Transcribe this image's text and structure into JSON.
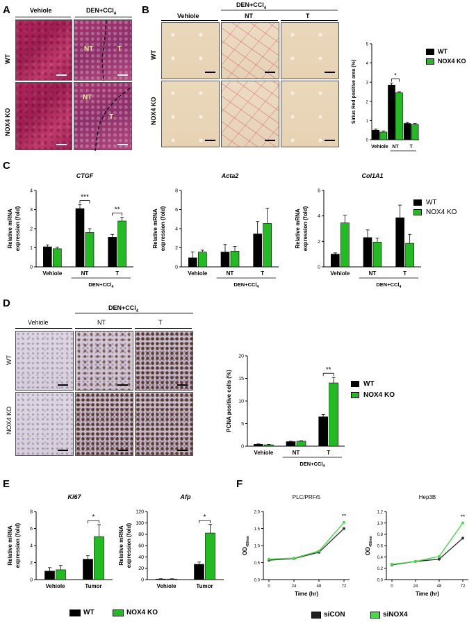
{
  "panels": {
    "A": {
      "letter": "A",
      "col_vehicle": "Vehiole",
      "col_den": "DEN+CCl",
      "col_den_sub": "4",
      "row_wt": "WT",
      "row_ko": "NOX4 KO",
      "tile_nt": "NT",
      "tile_t": "T"
    },
    "B": {
      "letter": "B",
      "col_vehicle": "Vehiole",
      "col_den": "DEN+CCl",
      "col_den_sub": "4",
      "col_nt": "NT",
      "col_t": "T",
      "row_wt": "WT",
      "row_ko": "NOX4 KO"
    },
    "C": {
      "letter": "C"
    },
    "D": {
      "letter": "D",
      "col_vehicle": "Vehiole",
      "col_den": "DEN+CCl",
      "col_den_sub": "4",
      "col_nt": "NT",
      "col_t": "T",
      "row_wt": "WT",
      "row_ko": "NOX4 KO"
    },
    "E": {
      "letter": "E"
    },
    "F": {
      "letter": "F"
    }
  },
  "legend_wt_ko": {
    "wt": "WT",
    "ko": "NOX4 KO"
  },
  "legend_f": {
    "con": "siCON",
    "nox4": "siNOX4"
  },
  "colors": {
    "wt": "#000000",
    "ko": "#22bb22",
    "f_con": "#333333",
    "f_nox4": "#44dd44"
  },
  "chart_data": [
    {
      "id": "B-sirius",
      "type": "bar",
      "ylabel": "Sirius Red positive area (%)",
      "ylim": [
        0,
        5
      ],
      "yticks": [
        0,
        1,
        2,
        3,
        4,
        5
      ],
      "categories": [
        "Vehiole",
        "NT",
        "T"
      ],
      "group_label": "DEN+CCl4",
      "series": [
        {
          "name": "WT",
          "values": [
            0.5,
            2.85,
            0.85
          ],
          "errors": [
            0.05,
            0.1,
            0.05
          ]
        },
        {
          "name": "NOX4 KO",
          "values": [
            0.4,
            2.45,
            0.8
          ],
          "errors": [
            0.05,
            0.05,
            0.05
          ]
        }
      ],
      "annotations": [
        {
          "text": "*",
          "category": "NT"
        }
      ]
    },
    {
      "id": "C-ctgf",
      "type": "bar",
      "title": "CTGF",
      "ylabel": "Relative mRNA expression (fold)",
      "ylim": [
        0,
        4
      ],
      "yticks": [
        0,
        1,
        2,
        3,
        4
      ],
      "categories": [
        "Vehiole",
        "NT",
        "T"
      ],
      "group_label": "DEN+CCl4",
      "series": [
        {
          "name": "WT",
          "values": [
            1.05,
            3.05,
            1.55
          ],
          "errors": [
            0.1,
            0.2,
            0.15
          ]
        },
        {
          "name": "NOX4 KO",
          "values": [
            0.95,
            1.8,
            2.4
          ],
          "errors": [
            0.08,
            0.2,
            0.2
          ]
        }
      ],
      "annotations": [
        {
          "text": "***",
          "category": "NT"
        },
        {
          "text": "**",
          "category": "T"
        }
      ]
    },
    {
      "id": "C-acta2",
      "type": "bar",
      "title": "Acta2",
      "ylabel": "Relative mRNA expression (fold)",
      "ylim": [
        0,
        8
      ],
      "yticks": [
        0,
        2,
        4,
        6,
        8
      ],
      "categories": [
        "Vehiole",
        "NT",
        "T"
      ],
      "group_label": "DEN+CCl4",
      "series": [
        {
          "name": "WT",
          "values": [
            0.95,
            1.55,
            3.45
          ],
          "errors": [
            0.6,
            0.8,
            1.3
          ]
        },
        {
          "name": "NOX4 KO",
          "values": [
            1.55,
            1.65,
            4.55
          ],
          "errors": [
            0.2,
            0.5,
            1.6
          ]
        }
      ]
    },
    {
      "id": "C-col1a1",
      "type": "bar",
      "title": "Col1A1",
      "ylabel": "Relative mRNA expression (fold)",
      "ylim": [
        0,
        6
      ],
      "yticks": [
        0,
        2,
        4,
        6
      ],
      "categories": [
        "Vehiole",
        "NT",
        "T"
      ],
      "group_label": "DEN+CCl4",
      "series": [
        {
          "name": "WT",
          "values": [
            1.0,
            2.3,
            3.85
          ],
          "errors": [
            0.1,
            0.6,
            1.0
          ]
        },
        {
          "name": "NOX4 KO",
          "values": [
            3.45,
            1.95,
            1.85
          ],
          "errors": [
            0.6,
            0.3,
            0.7
          ]
        }
      ]
    },
    {
      "id": "D-pcna",
      "type": "bar",
      "ylabel": "PCNA positive cells (%)",
      "ylim": [
        0,
        20
      ],
      "yticks": [
        0,
        5,
        10,
        15,
        20
      ],
      "categories": [
        "Vehiole",
        "NT",
        "T"
      ],
      "group_label": "DEN+CCl4",
      "series": [
        {
          "name": "WT",
          "values": [
            0.4,
            1.0,
            6.5
          ],
          "errors": [
            0.1,
            0.1,
            0.5
          ]
        },
        {
          "name": "NOX4 KO",
          "values": [
            0.3,
            1.1,
            14.0
          ],
          "errors": [
            0.1,
            0.1,
            1.2
          ]
        }
      ],
      "annotations": [
        {
          "text": "**",
          "category": "T"
        }
      ]
    },
    {
      "id": "E-ki67",
      "type": "bar",
      "title": "Ki67",
      "ylabel": "Relative mRNA expression (fold)",
      "ylim": [
        0,
        8
      ],
      "yticks": [
        0,
        2,
        4,
        6,
        8
      ],
      "categories": [
        "Vehiole",
        "Tumor"
      ],
      "series": [
        {
          "name": "WT",
          "values": [
            1.0,
            2.4
          ],
          "errors": [
            0.4,
            0.4
          ]
        },
        {
          "name": "NOX4 KO",
          "values": [
            1.15,
            5.05
          ],
          "errors": [
            0.5,
            1.4
          ]
        }
      ],
      "annotations": [
        {
          "text": "*",
          "category": "Tumor"
        }
      ]
    },
    {
      "id": "E-afp",
      "type": "bar",
      "title": "Afp",
      "ylabel": "Relative mRNA expression (fold)",
      "ylim": [
        0,
        120
      ],
      "yticks": [
        0,
        20,
        40,
        60,
        80,
        100,
        120
      ],
      "categories": [
        "Vehiole",
        "Tumor"
      ],
      "series": [
        {
          "name": "WT",
          "values": [
            1.0,
            27
          ],
          "errors": [
            0.5,
            4
          ]
        },
        {
          "name": "NOX4 KO",
          "values": [
            1.0,
            82
          ],
          "errors": [
            0.5,
            15
          ]
        }
      ],
      "annotations": [
        {
          "text": "*",
          "category": "Tumor"
        }
      ]
    },
    {
      "id": "F-plc",
      "type": "line",
      "title": "PLC/PRF/5",
      "xlabel": "Time (hr)",
      "ylabel": "OD",
      "ylabel_sub": "450nm",
      "x": [
        0,
        24,
        48,
        72
      ],
      "ylim": [
        0.0,
        2.0
      ],
      "yticks": [
        0.0,
        0.5,
        1.0,
        1.5,
        2.0
      ],
      "series": [
        {
          "name": "siCON",
          "values": [
            0.57,
            0.62,
            0.8,
            1.5
          ]
        },
        {
          "name": "siNOX4",
          "values": [
            0.6,
            0.63,
            0.84,
            1.68
          ]
        }
      ],
      "annotations": [
        {
          "text": "**",
          "x": 72
        }
      ]
    },
    {
      "id": "F-hep3b",
      "type": "line",
      "title": "Hep3B",
      "xlabel": "Time (hr)",
      "ylabel": "OD",
      "ylabel_sub": "450nm",
      "x": [
        0,
        24,
        48,
        72
      ],
      "ylim": [
        0.0,
        1.2
      ],
      "yticks": [
        0.0,
        0.2,
        0.4,
        0.6,
        0.8,
        1.0,
        1.2
      ],
      "series": [
        {
          "name": "siCON",
          "values": [
            0.26,
            0.32,
            0.36,
            0.73
          ]
        },
        {
          "name": "siNOX4",
          "values": [
            0.27,
            0.32,
            0.41,
            1.0
          ]
        }
      ],
      "annotations": [
        {
          "text": "**",
          "x": 72
        }
      ]
    }
  ]
}
